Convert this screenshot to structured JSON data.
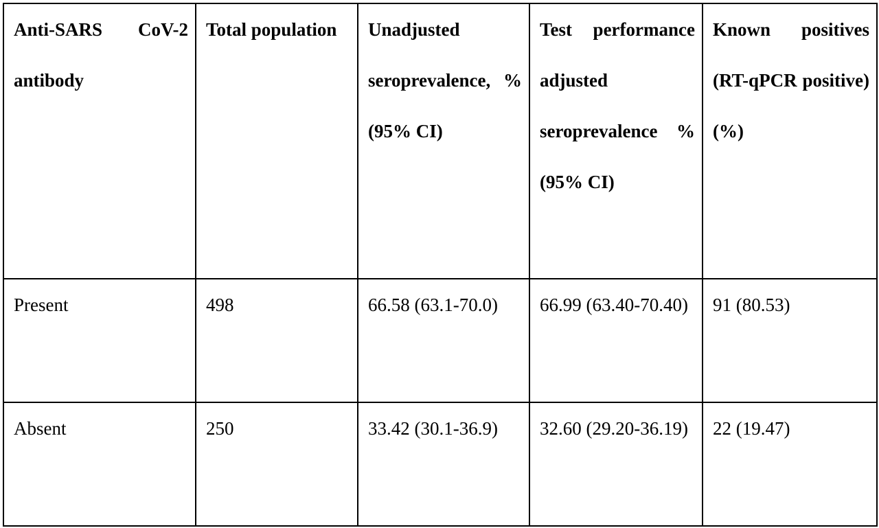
{
  "table": {
    "header": [
      "Anti-SARS CoV-2 antibody",
      "Total population",
      "Unadjusted seroprevalence, % (95% CI)",
      "Test performance adjusted seroprevalence % (95% CI)",
      "Known positives (RT-qPCR positive) (%)"
    ],
    "rows": [
      [
        "Present",
        "498",
        "66.58 (63.1-70.0)",
        "66.99 (63.40-70.40)",
        "91 (80.53)"
      ],
      [
        "Absent",
        "250",
        "33.42 (30.1-36.9)",
        "32.60 (29.20-36.19)",
        "22 (19.47)"
      ]
    ]
  }
}
